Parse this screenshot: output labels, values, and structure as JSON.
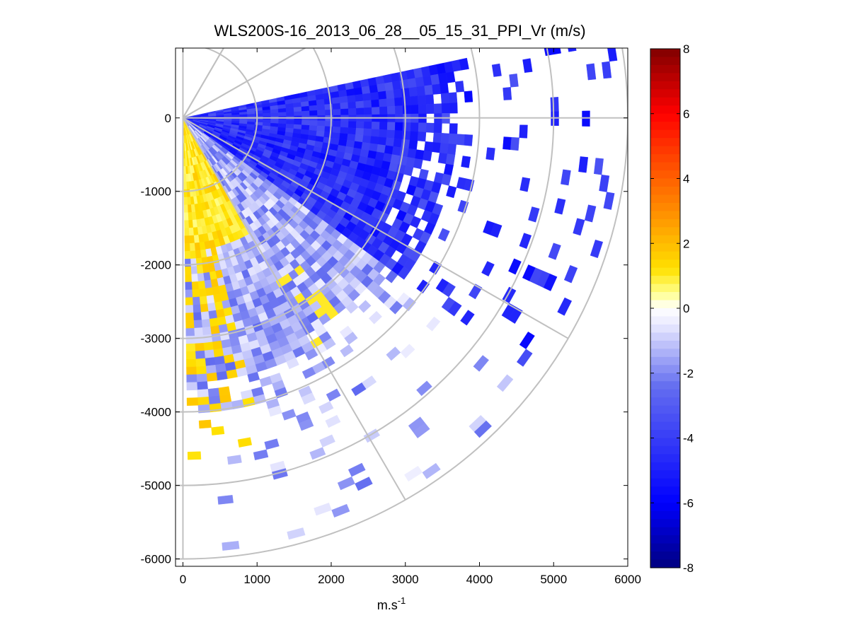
{
  "chart_data": {
    "type": "heatmap",
    "subtype": "ppi-polar-sector",
    "title": "WLS200S-16_2013_06_28__05_15_31_PPI_Vr (m/s)",
    "xlabel": "m.s",
    "xlabel_sup": "-1",
    "ylabel": "",
    "xlim": [
      -100,
      6000
    ],
    "ylim": [
      -6100,
      950
    ],
    "x_ticks": [
      0,
      1000,
      2000,
      3000,
      4000,
      5000,
      6000
    ],
    "x_tick_labels": [
      "0",
      "1000",
      "2000",
      "3000",
      "4000",
      "5000",
      "6000"
    ],
    "y_ticks": [
      0,
      -1000,
      -2000,
      -3000,
      -4000,
      -5000,
      -6000
    ],
    "y_tick_labels": [
      "0",
      "-1000",
      "-2000",
      "-3000",
      "-4000",
      "-5000",
      "-6000"
    ],
    "polar_grid": {
      "range_rings": [
        1000,
        2000,
        3000,
        4000,
        5000,
        6000
      ],
      "radial_spokes_deg": [
        30,
        60,
        90,
        120,
        150,
        180
      ],
      "grid": true
    },
    "sector": {
      "azimuth_start_deg": 78,
      "azimuth_end_deg": 177,
      "max_range": 5900,
      "origin": [
        0,
        0
      ]
    },
    "field_summary": [
      {
        "region": "azimuth 78-125 deg, range 0-4000",
        "vr_ms": -4.5
      },
      {
        "region": "azimuth 125-150 deg, range 800-3500",
        "vr_ms": -1.5
      },
      {
        "region": "azimuth 150-170 deg, range 200-1800",
        "vr_ms": 1.0
      },
      {
        "region": "azimuth 165-177 deg, range 1600-5000",
        "vr_ms": 1.0
      },
      {
        "region": "azimuth 140-165 deg, range 2500-3500",
        "vr_ms": 1.0
      },
      {
        "region": "range beyond 4000",
        "vr_ms": "sparse"
      }
    ],
    "colorbar": {
      "colormap": "blue-white-red",
      "vmin": -8,
      "vmax": 8,
      "ticks": [
        8,
        6,
        4,
        2,
        0,
        -2,
        -4,
        -6,
        -8
      ],
      "tick_labels": [
        "8",
        "6",
        "4",
        "2",
        "0",
        "-2",
        "-4",
        "-6",
        "-8"
      ]
    }
  }
}
